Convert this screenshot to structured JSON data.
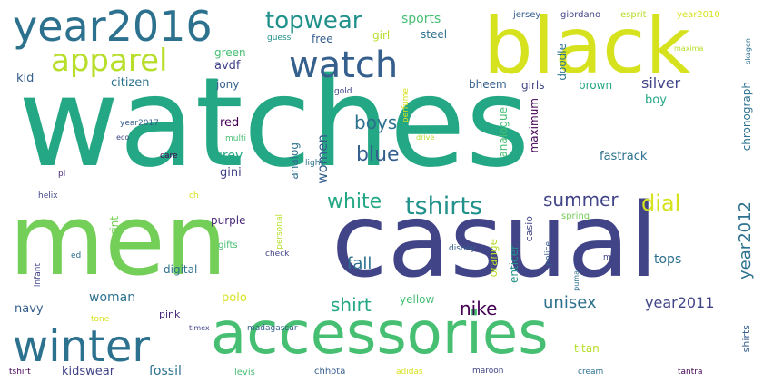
{
  "palette": {
    "yellow": "#d7e21f",
    "yellow_green": "#b7de2a",
    "light_green": "#74cf58",
    "green": "#46bf73",
    "teal_green": "#24a784",
    "teal": "#21918c",
    "blue_teal": "#2c718e",
    "blue": "#355f8d",
    "indigo": "#414487",
    "purple": "#482878",
    "dark_purple": "#440154"
  },
  "words": [
    "watches",
    "men",
    "casual",
    "black",
    "accessories",
    "year2016",
    "winter",
    "watch",
    "apparel",
    "topwear",
    "tshirts",
    "white",
    "dial",
    "summer",
    "shirt",
    "women",
    "boys",
    "blue",
    "year2012",
    "nike",
    "unisex",
    "year2011",
    "woman",
    "sports",
    "girl",
    "steel",
    "free",
    "green",
    "avdf",
    "jony",
    "citizen",
    "kid",
    "doodle",
    "silver",
    "brown",
    "girls",
    "bheem",
    "boy",
    "maximum",
    "analogue",
    "chronograph",
    "fastrack",
    "analog",
    "red",
    "grey",
    "gini",
    "purple",
    "casio",
    "tops",
    "print",
    "digital",
    "polo",
    "fall",
    "navy",
    "pink",
    "yellow",
    "orange",
    "enticer",
    "shirts",
    "kidswear",
    "fossil",
    "titan",
    "jersey",
    "giordano",
    "esprit",
    "year2010",
    "skagen",
    "maxima",
    "guess",
    "gold",
    "perfume",
    "year2017",
    "eco",
    "multi",
    "drive",
    "care",
    "light",
    "pl",
    "helix",
    "ch",
    "personal",
    "spring",
    "gifts",
    "check",
    "disney",
    "police",
    "mtp",
    "puma",
    "ed",
    "infant",
    "tone",
    "timex",
    "madagascar",
    "tshirt",
    "levis",
    "chhota",
    "adidas",
    "maroon",
    "cream",
    "tantra"
  ]
}
